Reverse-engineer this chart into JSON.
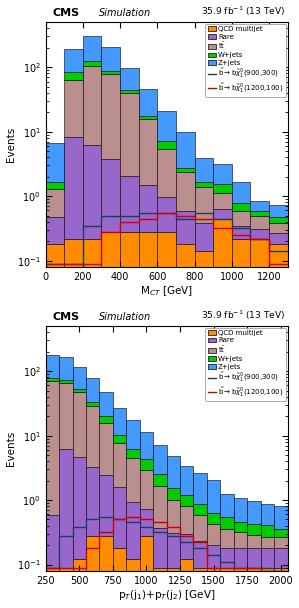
{
  "plot1": {
    "title_right": "35.9 fb$^{-1}$ (13 TeV)",
    "xlabel": "M$_{CT}$ [GeV]",
    "ylabel": "Events",
    "xlim": [
      0,
      1300
    ],
    "ylim": [
      0.08,
      500
    ],
    "bin_edges": [
      0,
      100,
      200,
      300,
      400,
      500,
      600,
      700,
      800,
      900,
      1000,
      1100,
      1200,
      1300
    ],
    "QCD": [
      0.18,
      0.22,
      0.22,
      0.28,
      0.28,
      0.28,
      0.28,
      0.18,
      0.14,
      0.45,
      0.22,
      0.22,
      0.18
    ],
    "Rare": [
      0.3,
      8.0,
      6.0,
      3.5,
      1.8,
      1.2,
      0.7,
      0.4,
      0.25,
      0.18,
      0.12,
      0.09,
      0.09
    ],
    "ttbar": [
      0.8,
      55,
      100,
      75,
      38,
      14,
      4.5,
      1.8,
      1.0,
      0.5,
      0.25,
      0.18,
      0.12
    ],
    "Wjets": [
      0.4,
      20,
      18,
      8,
      3.5,
      1.8,
      1.8,
      0.4,
      0.25,
      0.4,
      0.18,
      0.09,
      0.09
    ],
    "Zjets": [
      5,
      110,
      180,
      120,
      55,
      28,
      14,
      7,
      2.2,
      1.6,
      0.9,
      0.25,
      0.25
    ],
    "sig1": [
      0.09,
      0.09,
      0.35,
      0.5,
      0.5,
      0.55,
      0.55,
      0.45,
      0.55,
      0.45,
      0.32,
      0.22,
      0.14
    ],
    "sig2": [
      0.09,
      0.09,
      0.09,
      0.28,
      0.4,
      0.45,
      0.55,
      0.5,
      0.45,
      0.32,
      0.25,
      0.22,
      0.09
    ]
  },
  "plot2": {
    "title_right": "35.9 fb$^{-1}$ (13 TeV)",
    "xlabel": "p$_{T}$(j$_{1}$)+p$_{T}$(j$_{2}$) [GeV]",
    "ylabel": "Events",
    "xlim": [
      250,
      2050
    ],
    "ylim": [
      0.08,
      500
    ],
    "bin_edges": [
      250,
      350,
      450,
      550,
      650,
      750,
      850,
      950,
      1050,
      1150,
      1250,
      1350,
      1450,
      1550,
      1650,
      1750,
      1850,
      1950,
      2050
    ],
    "QCD": [
      0.09,
      0.09,
      0.12,
      0.28,
      0.28,
      0.18,
      0.12,
      0.28,
      0.09,
      0.09,
      0.12,
      0.09,
      0.09,
      0.09,
      0.09,
      0.09,
      0.09,
      0.09
    ],
    "Rare": [
      0.5,
      6.0,
      4.5,
      3.0,
      2.2,
      1.4,
      0.8,
      0.45,
      0.28,
      0.22,
      0.18,
      0.14,
      0.11,
      0.09,
      0.09,
      0.09,
      0.09,
      0.09
    ],
    "ttbar": [
      70,
      60,
      42,
      25,
      13,
      6.0,
      3.5,
      2.2,
      1.3,
      0.7,
      0.5,
      0.35,
      0.22,
      0.18,
      0.14,
      0.11,
      0.09,
      0.09
    ],
    "Wjets": [
      7,
      8,
      6,
      5,
      4.5,
      2.8,
      1.8,
      1.4,
      0.9,
      0.55,
      0.38,
      0.28,
      0.22,
      0.18,
      0.14,
      0.14,
      0.14,
      0.09
    ],
    "Zjets": [
      100,
      90,
      62,
      45,
      28,
      16,
      11,
      7,
      4.5,
      3.2,
      2.2,
      1.8,
      1.4,
      0.7,
      0.6,
      0.55,
      0.45,
      0.45
    ],
    "sig1": [
      0.09,
      0.28,
      0.38,
      0.5,
      0.55,
      0.5,
      0.45,
      0.38,
      0.32,
      0.28,
      0.22,
      0.18,
      0.14,
      0.11,
      0.09,
      0.09,
      0.09,
      0.08
    ],
    "sig2": [
      0.09,
      0.09,
      0.09,
      0.18,
      0.32,
      0.5,
      0.55,
      0.5,
      0.45,
      0.38,
      0.28,
      0.22,
      0.09,
      0.09,
      0.09,
      0.09,
      0.08,
      0.07
    ]
  },
  "colors": {
    "QCD": "#FF8C00",
    "Rare": "#9966CC",
    "ttbar": "#BC8F8F",
    "Wjets": "#00CC00",
    "Zjets": "#4499FF",
    "sig1": "#1A3D5C",
    "sig2": "#CC0000"
  },
  "legend_labels": {
    "QCD": "QCD multijet",
    "Rare": "Rare",
    "ttbar": "t$\\bar{\\mathrm{t}}$",
    "Wjets": "W+jets",
    "Zjets": "Z+jets",
    "sig1": "$\\tilde{\\mathrm{b}}\\rightarrow \\mathrm{b}\\tilde{\\chi}_{1}^{0}$(900,300)",
    "sig2": "$\\tilde{\\mathrm{b}}\\rightarrow \\mathrm{b}\\tilde{\\chi}_{1}^{0}$(1200,100)"
  }
}
